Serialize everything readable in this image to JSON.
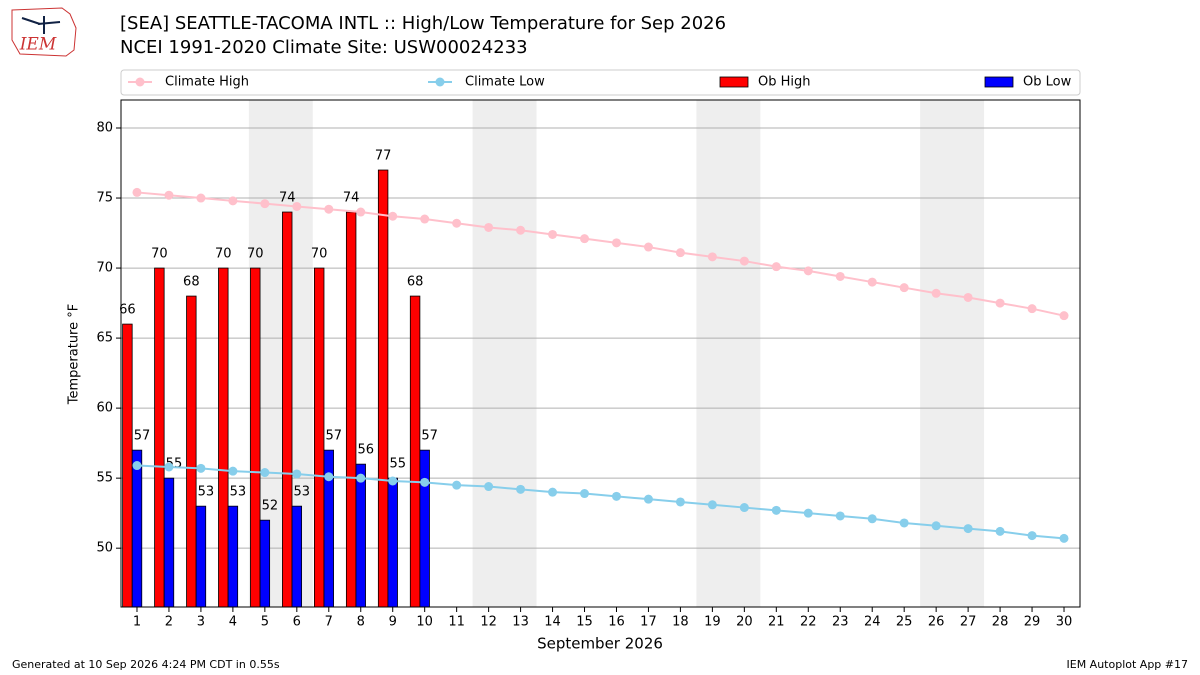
{
  "chart_data": {
    "type": "bar_line",
    "title": "[SEA] SEATTLE-TACOMA INTL :: High/Low Temperature for Sep 2026",
    "subtitle": "NCEI 1991-2020 Climate Site: USW00024233",
    "logo_text": "IEM",
    "y_label": "Temperature °F",
    "x_label": "September 2026",
    "footer_left": "Generated at 10 Sep 2026 4:24 PM CDT in 0.55s",
    "footer_right": "IEM Autoplot App #17",
    "x": [
      1,
      2,
      3,
      4,
      5,
      6,
      7,
      8,
      9,
      10,
      11,
      12,
      13,
      14,
      15,
      16,
      17,
      18,
      19,
      20,
      21,
      22,
      23,
      24,
      25,
      26,
      27,
      28,
      29,
      30
    ],
    "xlim": [
      0.5,
      30.5
    ],
    "xticks": [
      1,
      2,
      3,
      4,
      5,
      6,
      7,
      8,
      9,
      10,
      11,
      12,
      13,
      14,
      15,
      16,
      17,
      18,
      19,
      20,
      21,
      22,
      23,
      24,
      25,
      26,
      27,
      28,
      29,
      30
    ],
    "ylim": [
      45.8,
      82
    ],
    "yticks": [
      50,
      55,
      60,
      65,
      70,
      75,
      80
    ],
    "grid": true,
    "weekend_spans": [
      [
        4.5,
        6.5
      ],
      [
        11.5,
        13.5
      ],
      [
        18.5,
        20.5
      ],
      [
        25.5,
        27.5
      ]
    ],
    "series": [
      {
        "name": "Climate High",
        "kind": "line",
        "color": "#ffc0cb",
        "values": [
          75.4,
          75.2,
          75.0,
          74.8,
          74.6,
          74.4,
          74.2,
          74.0,
          73.7,
          73.5,
          73.2,
          72.9,
          72.7,
          72.4,
          72.1,
          71.8,
          71.5,
          71.1,
          70.8,
          70.5,
          70.1,
          69.8,
          69.4,
          69.0,
          68.6,
          68.2,
          67.9,
          67.5,
          67.1,
          66.6
        ]
      },
      {
        "name": "Climate Low",
        "kind": "line",
        "color": "#87ceeb",
        "values": [
          55.9,
          55.8,
          55.7,
          55.5,
          55.4,
          55.3,
          55.1,
          55.0,
          54.8,
          54.7,
          54.5,
          54.4,
          54.2,
          54.0,
          53.9,
          53.7,
          53.5,
          53.3,
          53.1,
          52.9,
          52.7,
          52.5,
          52.3,
          52.1,
          51.8,
          51.6,
          51.4,
          51.2,
          50.9,
          50.7
        ]
      },
      {
        "name": "Ob High",
        "kind": "bar",
        "color": "#ff0000",
        "values": [
          66,
          70,
          68,
          70,
          70,
          74,
          70,
          74,
          77,
          68,
          null,
          null,
          null,
          null,
          null,
          null,
          null,
          null,
          null,
          null,
          null,
          null,
          null,
          null,
          null,
          null,
          null,
          null,
          null,
          null
        ]
      },
      {
        "name": "Ob Low",
        "kind": "bar",
        "color": "#0000ff",
        "values": [
          57,
          55,
          53,
          53,
          52,
          53,
          57,
          56,
          55,
          57,
          null,
          null,
          null,
          null,
          null,
          null,
          null,
          null,
          null,
          null,
          null,
          null,
          null,
          null,
          null,
          null,
          null,
          null,
          null,
          null
        ]
      }
    ]
  }
}
